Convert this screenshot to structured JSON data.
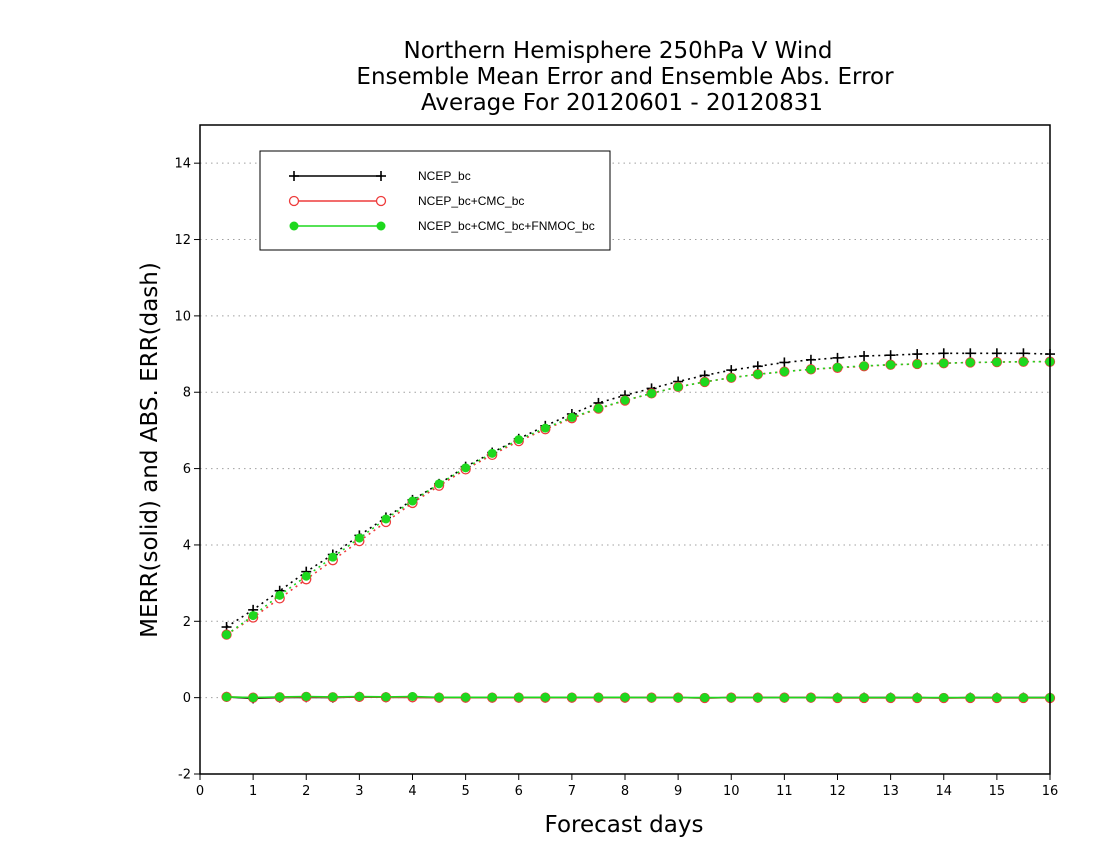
{
  "chart_data": {
    "type": "line",
    "title": [
      "Northern Hemisphere 250hPa V Wind",
      "Ensemble Mean Error and Ensemble Abs. Error",
      "Average For 20120601 - 20120831"
    ],
    "xlabel": "Forecast days",
    "ylabel": "MERR(solid) and ABS. ERR(dash)",
    "xlim": [
      0,
      16
    ],
    "ylim": [
      -2,
      15
    ],
    "xticks": [
      "0",
      "1",
      "2",
      "3",
      "4",
      "5",
      "6",
      "7",
      "8",
      "9",
      "10",
      "11",
      "12",
      "13",
      "14",
      "15",
      "16"
    ],
    "yticks": [
      "-2",
      "0",
      "2",
      "4",
      "6",
      "8",
      "10",
      "12",
      "14"
    ],
    "grid": "horizontal dotted",
    "legend_position": "top-left",
    "x": [
      0.5,
      1,
      1.5,
      2,
      2.5,
      3,
      3.5,
      4,
      4.5,
      5,
      5.5,
      6,
      6.5,
      7,
      7.5,
      8,
      8.5,
      9,
      9.5,
      10,
      10.5,
      11,
      11.5,
      12,
      12.5,
      13,
      13.5,
      14,
      14.5,
      15,
      15.5,
      16
    ],
    "series": [
      {
        "name": "NCEP_bc",
        "color": "#000000",
        "marker": "plus",
        "abs_err": [
          1.85,
          2.3,
          2.8,
          3.3,
          3.75,
          4.25,
          4.72,
          5.18,
          5.6,
          6.05,
          6.42,
          6.78,
          7.12,
          7.43,
          7.72,
          7.92,
          8.1,
          8.28,
          8.44,
          8.58,
          8.68,
          8.78,
          8.85,
          8.9,
          8.95,
          8.97,
          9.0,
          9.02,
          9.02,
          9.02,
          9.02,
          9.0
        ],
        "mean_err": [
          0.02,
          -0.02,
          0.0,
          0.01,
          0.0,
          0.02,
          0.01,
          0.01,
          0.0,
          0.0,
          0.0,
          0.0,
          0.0,
          0.0,
          0.0,
          0.0,
          0.0,
          0.0,
          -0.01,
          0.0,
          0.0,
          0.0,
          0.0,
          0.0,
          0.0,
          0.0,
          0.0,
          -0.01,
          0.0,
          0.0,
          0.0,
          0.0
        ]
      },
      {
        "name": "NCEP_bc+CMC_bc",
        "color": "#ee3b3b",
        "marker": "open-circle",
        "abs_err": [
          1.65,
          2.1,
          2.6,
          3.1,
          3.6,
          4.1,
          4.6,
          5.1,
          5.55,
          5.98,
          6.36,
          6.72,
          7.03,
          7.32,
          7.57,
          7.78,
          7.97,
          8.14,
          8.27,
          8.38,
          8.47,
          8.54,
          8.6,
          8.64,
          8.68,
          8.72,
          8.74,
          8.76,
          8.78,
          8.79,
          8.8,
          8.8
        ],
        "mean_err": [
          0.02,
          0.0,
          0.01,
          0.02,
          0.01,
          0.02,
          0.01,
          0.01,
          0.0,
          0.0,
          0.0,
          0.0,
          0.0,
          0.0,
          0.0,
          0.0,
          0.0,
          0.0,
          -0.01,
          0.0,
          0.0,
          0.0,
          0.0,
          -0.01,
          -0.01,
          -0.01,
          -0.01,
          -0.01,
          -0.01,
          -0.01,
          -0.01,
          -0.01
        ]
      },
      {
        "name": "NCEP_bc+CMC_bc+FNMOC_bc",
        "color": "#1ed81e",
        "marker": "filled-circle",
        "abs_err": [
          1.65,
          2.15,
          2.68,
          3.18,
          3.68,
          4.18,
          4.68,
          5.15,
          5.6,
          6.02,
          6.4,
          6.76,
          7.06,
          7.34,
          7.58,
          7.79,
          7.97,
          8.14,
          8.27,
          8.38,
          8.47,
          8.54,
          8.6,
          8.65,
          8.69,
          8.72,
          8.74,
          8.76,
          8.78,
          8.79,
          8.8,
          8.8
        ],
        "mean_err": [
          0.02,
          0.0,
          0.02,
          0.03,
          0.02,
          0.03,
          0.02,
          0.03,
          0.01,
          0.01,
          0.01,
          0.01,
          0.01,
          0.01,
          0.01,
          0.01,
          0.0,
          0.0,
          0.0,
          0.0,
          0.0,
          0.0,
          0.0,
          0.0,
          0.0,
          0.0,
          0.0,
          0.0,
          0.0,
          0.0,
          0.0,
          0.0
        ]
      }
    ]
  }
}
